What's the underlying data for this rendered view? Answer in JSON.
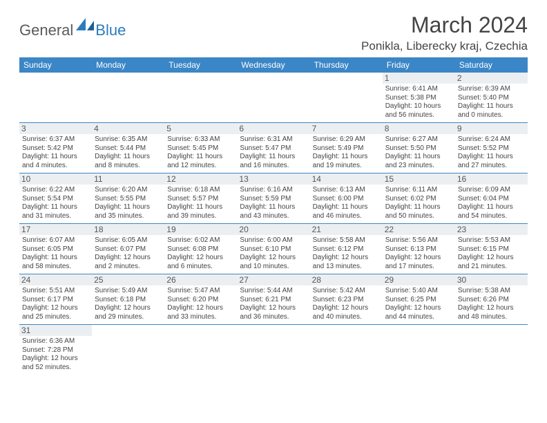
{
  "logo": {
    "general": "General",
    "blue": "Blue"
  },
  "title": "March 2024",
  "location": "Ponikla, Liberecky kraj, Czechia",
  "colors": {
    "header_bg": "#3b86c6",
    "header_text": "#ffffff",
    "border": "#3b86c6",
    "daynum_bg": "#eceff1",
    "text": "#444444",
    "logo_blue": "#2b7bbf",
    "logo_gray": "#5a5a5a"
  },
  "weekdays": [
    "Sunday",
    "Monday",
    "Tuesday",
    "Wednesday",
    "Thursday",
    "Friday",
    "Saturday"
  ],
  "weeks": [
    [
      null,
      null,
      null,
      null,
      null,
      {
        "n": "1",
        "sr": "6:41 AM",
        "ss": "5:38 PM",
        "dl": "10 hours and 56 minutes."
      },
      {
        "n": "2",
        "sr": "6:39 AM",
        "ss": "5:40 PM",
        "dl": "11 hours and 0 minutes."
      }
    ],
    [
      {
        "n": "3",
        "sr": "6:37 AM",
        "ss": "5:42 PM",
        "dl": "11 hours and 4 minutes."
      },
      {
        "n": "4",
        "sr": "6:35 AM",
        "ss": "5:44 PM",
        "dl": "11 hours and 8 minutes."
      },
      {
        "n": "5",
        "sr": "6:33 AM",
        "ss": "5:45 PM",
        "dl": "11 hours and 12 minutes."
      },
      {
        "n": "6",
        "sr": "6:31 AM",
        "ss": "5:47 PM",
        "dl": "11 hours and 16 minutes."
      },
      {
        "n": "7",
        "sr": "6:29 AM",
        "ss": "5:49 PM",
        "dl": "11 hours and 19 minutes."
      },
      {
        "n": "8",
        "sr": "6:27 AM",
        "ss": "5:50 PM",
        "dl": "11 hours and 23 minutes."
      },
      {
        "n": "9",
        "sr": "6:24 AM",
        "ss": "5:52 PM",
        "dl": "11 hours and 27 minutes."
      }
    ],
    [
      {
        "n": "10",
        "sr": "6:22 AM",
        "ss": "5:54 PM",
        "dl": "11 hours and 31 minutes."
      },
      {
        "n": "11",
        "sr": "6:20 AM",
        "ss": "5:55 PM",
        "dl": "11 hours and 35 minutes."
      },
      {
        "n": "12",
        "sr": "6:18 AM",
        "ss": "5:57 PM",
        "dl": "11 hours and 39 minutes."
      },
      {
        "n": "13",
        "sr": "6:16 AM",
        "ss": "5:59 PM",
        "dl": "11 hours and 43 minutes."
      },
      {
        "n": "14",
        "sr": "6:13 AM",
        "ss": "6:00 PM",
        "dl": "11 hours and 46 minutes."
      },
      {
        "n": "15",
        "sr": "6:11 AM",
        "ss": "6:02 PM",
        "dl": "11 hours and 50 minutes."
      },
      {
        "n": "16",
        "sr": "6:09 AM",
        "ss": "6:04 PM",
        "dl": "11 hours and 54 minutes."
      }
    ],
    [
      {
        "n": "17",
        "sr": "6:07 AM",
        "ss": "6:05 PM",
        "dl": "11 hours and 58 minutes."
      },
      {
        "n": "18",
        "sr": "6:05 AM",
        "ss": "6:07 PM",
        "dl": "12 hours and 2 minutes."
      },
      {
        "n": "19",
        "sr": "6:02 AM",
        "ss": "6:08 PM",
        "dl": "12 hours and 6 minutes."
      },
      {
        "n": "20",
        "sr": "6:00 AM",
        "ss": "6:10 PM",
        "dl": "12 hours and 10 minutes."
      },
      {
        "n": "21",
        "sr": "5:58 AM",
        "ss": "6:12 PM",
        "dl": "12 hours and 13 minutes."
      },
      {
        "n": "22",
        "sr": "5:56 AM",
        "ss": "6:13 PM",
        "dl": "12 hours and 17 minutes."
      },
      {
        "n": "23",
        "sr": "5:53 AM",
        "ss": "6:15 PM",
        "dl": "12 hours and 21 minutes."
      }
    ],
    [
      {
        "n": "24",
        "sr": "5:51 AM",
        "ss": "6:17 PM",
        "dl": "12 hours and 25 minutes."
      },
      {
        "n": "25",
        "sr": "5:49 AM",
        "ss": "6:18 PM",
        "dl": "12 hours and 29 minutes."
      },
      {
        "n": "26",
        "sr": "5:47 AM",
        "ss": "6:20 PM",
        "dl": "12 hours and 33 minutes."
      },
      {
        "n": "27",
        "sr": "5:44 AM",
        "ss": "6:21 PM",
        "dl": "12 hours and 36 minutes."
      },
      {
        "n": "28",
        "sr": "5:42 AM",
        "ss": "6:23 PM",
        "dl": "12 hours and 40 minutes."
      },
      {
        "n": "29",
        "sr": "5:40 AM",
        "ss": "6:25 PM",
        "dl": "12 hours and 44 minutes."
      },
      {
        "n": "30",
        "sr": "5:38 AM",
        "ss": "6:26 PM",
        "dl": "12 hours and 48 minutes."
      }
    ],
    [
      {
        "n": "31",
        "sr": "6:36 AM",
        "ss": "7:28 PM",
        "dl": "12 hours and 52 minutes."
      },
      null,
      null,
      null,
      null,
      null,
      null
    ]
  ],
  "labels": {
    "sunrise": "Sunrise:",
    "sunset": "Sunset:",
    "daylight": "Daylight:"
  }
}
